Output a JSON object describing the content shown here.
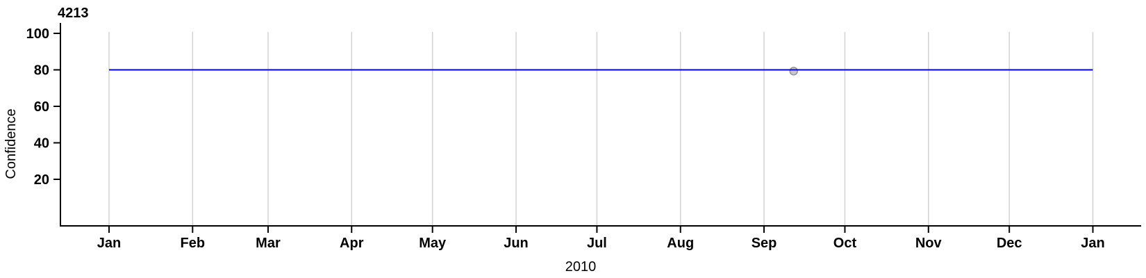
{
  "chart_data": {
    "type": "line",
    "title": "4213",
    "xlabel": "2010",
    "ylabel": "Confidence",
    "x_axis": {
      "tick_labels": [
        "Jan",
        "Feb",
        "Mar",
        "Apr",
        "May",
        "Jun",
        "Jul",
        "Aug",
        "Sep",
        "Oct",
        "Nov",
        "Dec",
        "Jan"
      ],
      "tick_day_offsets": [
        0,
        31,
        59,
        90,
        120,
        151,
        181,
        212,
        243,
        273,
        304,
        334,
        365
      ],
      "domain_days": [
        0,
        365
      ],
      "gridlines": true,
      "gridline_color": "#d2d2d2"
    },
    "y_axis": {
      "tick_values": [
        20,
        40,
        60,
        80,
        100
      ],
      "axis_color": "#000000"
    },
    "series": [
      {
        "name": "confidence",
        "color": "#0000d4",
        "x_days": [
          0,
          365
        ],
        "y": [
          80,
          80
        ]
      }
    ],
    "markers": [
      {
        "x_day": 254,
        "y": 79.3,
        "fill": "#c6c6ce",
        "stroke": "#90909a",
        "radius": 5.5
      }
    ],
    "text_color": "#000000"
  }
}
